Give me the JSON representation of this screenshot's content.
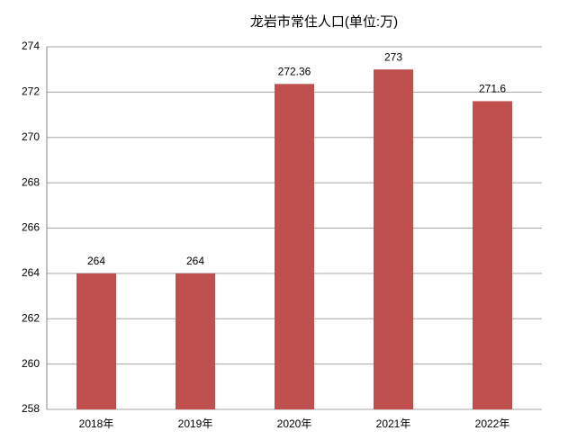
{
  "chart_data": {
    "type": "bar",
    "title": "龙岩市常住人口(单位:万)",
    "categories": [
      "2018年",
      "2019年",
      "2020年",
      "2021年",
      "2022年"
    ],
    "values": [
      264,
      264,
      272.36,
      273,
      271.6
    ],
    "color": "#c0504d",
    "ylim": [
      258,
      274
    ],
    "yticks": [
      258,
      260,
      262,
      264,
      266,
      268,
      270,
      272,
      274
    ],
    "grid": true
  }
}
